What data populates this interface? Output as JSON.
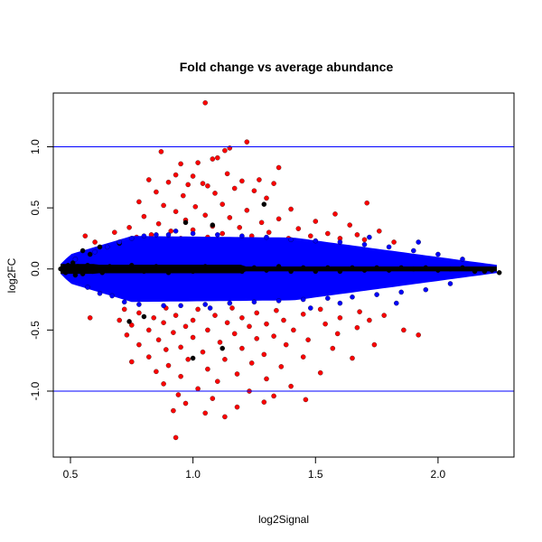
{
  "chart_data": {
    "type": "scatter",
    "title": "Fold change vs average abundance",
    "xlabel": "log2Signal",
    "ylabel": "log2FC",
    "xlim": [
      0.43,
      2.31
    ],
    "ylim": [
      -1.54,
      1.44
    ],
    "xticks": [
      {
        "value": 0.5,
        "label": "0.5"
      },
      {
        "value": 1.0,
        "label": "1.0"
      },
      {
        "value": 1.5,
        "label": "1.5"
      },
      {
        "value": 2.0,
        "label": "2.0"
      }
    ],
    "yticks": [
      {
        "value": -1.0,
        "label": "-1.0"
      },
      {
        "value": -0.5,
        "label": "-0.5"
      },
      {
        "value": 0.0,
        "label": "0.0"
      },
      {
        "value": 0.5,
        "label": "0.5"
      },
      {
        "value": 1.0,
        "label": "1.0"
      }
    ],
    "reference_lines": [
      {
        "y": 1.0,
        "color": "#0000ff"
      },
      {
        "y": -1.0,
        "color": "#0000ff"
      }
    ],
    "grid": false,
    "legend": "none",
    "colors": {
      "black": "#000000",
      "blue": "#0000ff",
      "red": "#ff0000",
      "frame": "#000000"
    },
    "series": [
      {
        "color": "#ff0000",
        "points": [
          [
            1.05,
            1.36
          ],
          [
            1.22,
            1.04
          ],
          [
            0.87,
            0.96
          ],
          [
            1.13,
            0.97
          ],
          [
            1.15,
            0.99
          ],
          [
            1.08,
            0.9
          ],
          [
            1.1,
            0.91
          ],
          [
            1.02,
            0.87
          ],
          [
            0.95,
            0.86
          ],
          [
            1.35,
            0.83
          ],
          [
            1.14,
            0.78
          ],
          [
            0.93,
            0.77
          ],
          [
            1.0,
            0.76
          ],
          [
            0.82,
            0.73
          ],
          [
            1.27,
            0.73
          ],
          [
            1.2,
            0.72
          ],
          [
            0.9,
            0.71
          ],
          [
            1.04,
            0.7
          ],
          [
            1.33,
            0.7
          ],
          [
            0.98,
            0.69
          ],
          [
            1.06,
            0.68
          ],
          [
            1.17,
            0.66
          ],
          [
            1.25,
            0.64
          ],
          [
            0.85,
            0.63
          ],
          [
            1.09,
            0.62
          ],
          [
            0.96,
            0.6
          ],
          [
            1.3,
            0.58
          ],
          [
            0.78,
            0.55
          ],
          [
            1.71,
            0.54
          ],
          [
            1.12,
            0.53
          ],
          [
            0.88,
            0.52
          ],
          [
            1.01,
            0.51
          ],
          [
            1.4,
            0.49
          ],
          [
            1.22,
            0.48
          ],
          [
            0.93,
            0.47
          ],
          [
            1.58,
            0.45
          ],
          [
            1.05,
            0.44
          ],
          [
            0.8,
            0.43
          ],
          [
            1.15,
            0.42
          ],
          [
            1.35,
            0.41
          ],
          [
            0.97,
            0.4
          ],
          [
            1.5,
            0.39
          ],
          [
            1.28,
            0.38
          ],
          [
            0.86,
            0.37
          ],
          [
            1.64,
            0.36
          ],
          [
            1.08,
            0.35
          ],
          [
            0.74,
            0.34
          ],
          [
            1.19,
            0.34
          ],
          [
            1.43,
            0.33
          ],
          [
            1.76,
            0.31
          ],
          [
            1.0,
            0.32
          ],
          [
            0.91,
            0.31
          ],
          [
            1.31,
            0.3
          ],
          [
            1.55,
            0.29
          ],
          [
            0.68,
            0.3
          ],
          [
            1.12,
            0.29
          ],
          [
            1.67,
            0.28
          ],
          [
            0.83,
            0.28
          ],
          [
            1.24,
            0.27
          ],
          [
            1.48,
            0.27
          ],
          [
            0.56,
            0.27
          ],
          [
            1.82,
            0.22
          ],
          [
            0.6,
            0.22
          ],
          [
            1.7,
            0.24
          ],
          [
            1.39,
            0.25
          ],
          [
            0.95,
            0.25
          ],
          [
            1.06,
            0.26
          ],
          [
            1.2,
            0.25
          ],
          [
            0.77,
            0.26
          ],
          [
            1.6,
            0.25
          ],
          [
            0.72,
            -0.33
          ],
          [
            0.89,
            -0.32
          ],
          [
            1.02,
            -0.33
          ],
          [
            1.16,
            -0.32
          ],
          [
            1.34,
            -0.34
          ],
          [
            1.52,
            -0.33
          ],
          [
            0.58,
            -0.4
          ],
          [
            1.68,
            -0.35
          ],
          [
            0.78,
            -0.36
          ],
          [
            1.26,
            -0.36
          ],
          [
            0.93,
            -0.38
          ],
          [
            1.09,
            -0.38
          ],
          [
            1.45,
            -0.37
          ],
          [
            1.78,
            -0.38
          ],
          [
            0.84,
            -0.4
          ],
          [
            1.2,
            -0.4
          ],
          [
            1.6,
            -0.4
          ],
          [
            0.7,
            -0.42
          ],
          [
            1.0,
            -0.42
          ],
          [
            1.37,
            -0.42
          ],
          [
            1.72,
            -0.42
          ],
          [
            0.88,
            -0.44
          ],
          [
            1.14,
            -0.44
          ],
          [
            1.3,
            -0.45
          ],
          [
            1.54,
            -0.45
          ],
          [
            0.75,
            -0.46
          ],
          [
            0.97,
            -0.47
          ],
          [
            1.23,
            -0.47
          ],
          [
            1.67,
            -0.48
          ],
          [
            1.86,
            -0.5
          ],
          [
            0.82,
            -0.5
          ],
          [
            1.06,
            -0.5
          ],
          [
            1.41,
            -0.5
          ],
          [
            0.92,
            -0.52
          ],
          [
            1.17,
            -0.53
          ],
          [
            1.59,
            -0.53
          ],
          [
            0.73,
            -0.54
          ],
          [
            1.33,
            -0.55
          ],
          [
            1.92,
            -0.54
          ],
          [
            1.0,
            -0.56
          ],
          [
            1.26,
            -0.57
          ],
          [
            0.86,
            -0.58
          ],
          [
            1.47,
            -0.58
          ],
          [
            1.11,
            -0.6
          ],
          [
            1.74,
            -0.62
          ],
          [
            0.78,
            -0.62
          ],
          [
            0.95,
            -0.64
          ],
          [
            1.38,
            -0.62
          ],
          [
            1.2,
            -0.65
          ],
          [
            1.57,
            -0.65
          ],
          [
            0.89,
            -0.66
          ],
          [
            1.04,
            -0.68
          ],
          [
            1.29,
            -0.7
          ],
          [
            0.82,
            -0.72
          ],
          [
            1.45,
            -0.72
          ],
          [
            0.98,
            -0.74
          ],
          [
            1.13,
            -0.74
          ],
          [
            1.65,
            -0.73
          ],
          [
            0.75,
            -0.76
          ],
          [
            1.24,
            -0.77
          ],
          [
            0.9,
            -0.79
          ],
          [
            1.36,
            -0.8
          ],
          [
            1.06,
            -0.82
          ],
          [
            0.85,
            -0.84
          ],
          [
            1.18,
            -0.86
          ],
          [
            1.52,
            -0.85
          ],
          [
            0.95,
            -0.88
          ],
          [
            1.3,
            -0.9
          ],
          [
            1.1,
            -0.92
          ],
          [
            0.88,
            -0.94
          ],
          [
            1.4,
            -0.96
          ],
          [
            1.02,
            -0.98
          ],
          [
            1.23,
            -1.0
          ],
          [
            0.94,
            -1.03
          ],
          [
            1.33,
            -1.04
          ],
          [
            1.08,
            -1.06
          ],
          [
            1.46,
            -1.07
          ],
          [
            0.97,
            -1.1
          ],
          [
            1.18,
            -1.13
          ],
          [
            0.92,
            -1.16
          ],
          [
            1.29,
            -1.09
          ],
          [
            1.05,
            -1.18
          ],
          [
            1.13,
            -1.21
          ],
          [
            0.93,
            -1.38
          ]
        ]
      },
      {
        "color": "#000000",
        "points": [
          [
            0.46,
            0.0
          ],
          [
            0.47,
            -0.01
          ],
          [
            0.47,
            0.02
          ],
          [
            0.48,
            -0.03
          ],
          [
            0.49,
            0.03
          ],
          [
            0.5,
            -0.01
          ],
          [
            0.51,
            0.05
          ],
          [
            0.52,
            -0.05
          ],
          [
            0.53,
            0.02
          ],
          [
            0.55,
            -0.04
          ],
          [
            0.57,
            0.03
          ],
          [
            0.59,
            -0.02
          ],
          [
            0.6,
            0.01
          ],
          [
            0.63,
            -0.03
          ],
          [
            0.66,
            0.02
          ],
          [
            0.7,
            -0.01
          ],
          [
            0.75,
            0.03
          ],
          [
            0.8,
            -0.02
          ],
          [
            0.85,
            0.02
          ],
          [
            0.9,
            -0.03
          ],
          [
            0.95,
            0.01
          ],
          [
            1.0,
            -0.02
          ],
          [
            1.05,
            0.02
          ],
          [
            1.1,
            -0.01
          ],
          [
            1.15,
            0.01
          ],
          [
            1.2,
            -0.02
          ],
          [
            1.25,
            0.01
          ],
          [
            1.3,
            -0.01
          ],
          [
            1.35,
            0.02
          ],
          [
            1.4,
            -0.02
          ],
          [
            1.45,
            0.01
          ],
          [
            1.5,
            -0.01
          ],
          [
            1.55,
            0.01
          ],
          [
            1.6,
            -0.02
          ],
          [
            1.65,
            0.01
          ],
          [
            1.7,
            -0.01
          ],
          [
            1.75,
            0.01
          ],
          [
            1.8,
            -0.01
          ],
          [
            1.85,
            0.01
          ],
          [
            1.9,
            0.0
          ],
          [
            1.95,
            0.01
          ],
          [
            2.0,
            -0.01
          ],
          [
            2.05,
            0.0
          ],
          [
            2.1,
            0.01
          ],
          [
            2.15,
            -0.02
          ],
          [
            2.19,
            -0.02
          ],
          [
            2.22,
            -0.01
          ],
          [
            2.25,
            -0.03
          ],
          [
            0.55,
            0.15
          ],
          [
            0.58,
            0.12
          ],
          [
            0.62,
            0.18
          ],
          [
            0.7,
            0.21
          ],
          [
            0.74,
            -0.43
          ],
          [
            0.8,
            -0.39
          ],
          [
            0.97,
            0.38
          ],
          [
            1.08,
            0.36
          ],
          [
            1.29,
            0.53
          ],
          [
            1.12,
            -0.65
          ],
          [
            1.0,
            -0.73
          ],
          [
            1.5,
            -0.02
          ]
        ]
      },
      {
        "color": "#0000ff",
        "points": [
          [
            0.7,
            0.22
          ],
          [
            0.72,
            -0.27
          ],
          [
            0.75,
            0.25
          ],
          [
            0.78,
            -0.29
          ],
          [
            0.8,
            0.27
          ],
          [
            0.85,
            0.28
          ],
          [
            0.88,
            -0.3
          ],
          [
            0.9,
            0.28
          ],
          [
            0.95,
            -0.3
          ],
          [
            1.0,
            0.29
          ],
          [
            1.05,
            -0.29
          ],
          [
            1.1,
            0.28
          ],
          [
            1.15,
            -0.28
          ],
          [
            1.2,
            0.27
          ],
          [
            1.25,
            -0.27
          ],
          [
            1.3,
            0.26
          ],
          [
            1.35,
            -0.26
          ],
          [
            1.4,
            0.24
          ],
          [
            1.45,
            -0.25
          ],
          [
            1.5,
            0.23
          ],
          [
            1.55,
            -0.24
          ],
          [
            1.6,
            0.22
          ],
          [
            1.65,
            -0.23
          ],
          [
            1.7,
            0.2
          ],
          [
            1.75,
            -0.21
          ],
          [
            1.8,
            0.18
          ],
          [
            1.85,
            -0.19
          ],
          [
            1.9,
            0.15
          ],
          [
            1.95,
            -0.17
          ],
          [
            2.0,
            0.12
          ],
          [
            2.05,
            -0.12
          ],
          [
            2.1,
            0.08
          ],
          [
            0.6,
            0.14
          ],
          [
            0.62,
            -0.2
          ],
          [
            0.65,
            0.18
          ],
          [
            0.67,
            -0.22
          ],
          [
            0.57,
            -0.15
          ],
          [
            0.52,
            0.08
          ],
          [
            1.92,
            0.22
          ],
          [
            1.6,
            -0.28
          ],
          [
            1.48,
            -0.32
          ],
          [
            1.72,
            0.26
          ],
          [
            0.93,
            0.31
          ],
          [
            1.07,
            -0.32
          ],
          [
            1.83,
            -0.28
          ]
        ]
      }
    ]
  }
}
